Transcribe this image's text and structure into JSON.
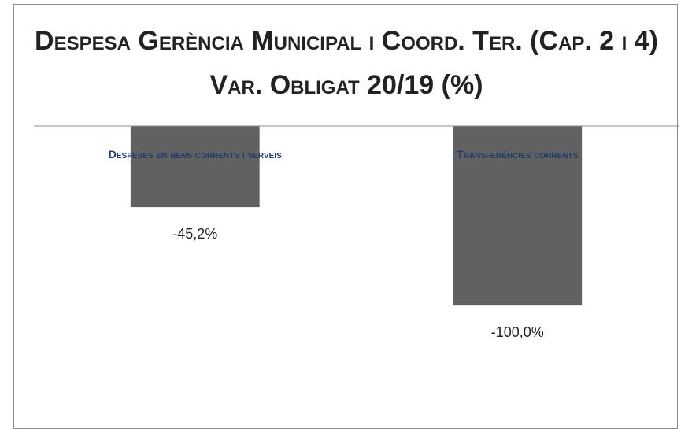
{
  "chart_data": {
    "type": "bar",
    "title": "Despesa Gerència Municipal i Coord. Ter. (Cap. 2 i 4) Var. Obligat 20/19 (%)",
    "categories": [
      "Despeses en béns corrents i serveis",
      "Transferències corrents"
    ],
    "values": [
      -45.2,
      -100.0
    ],
    "value_labels": [
      "-45,2%",
      "-100,0%"
    ],
    "color": "#616161",
    "ylim": [
      -160,
      0
    ]
  }
}
